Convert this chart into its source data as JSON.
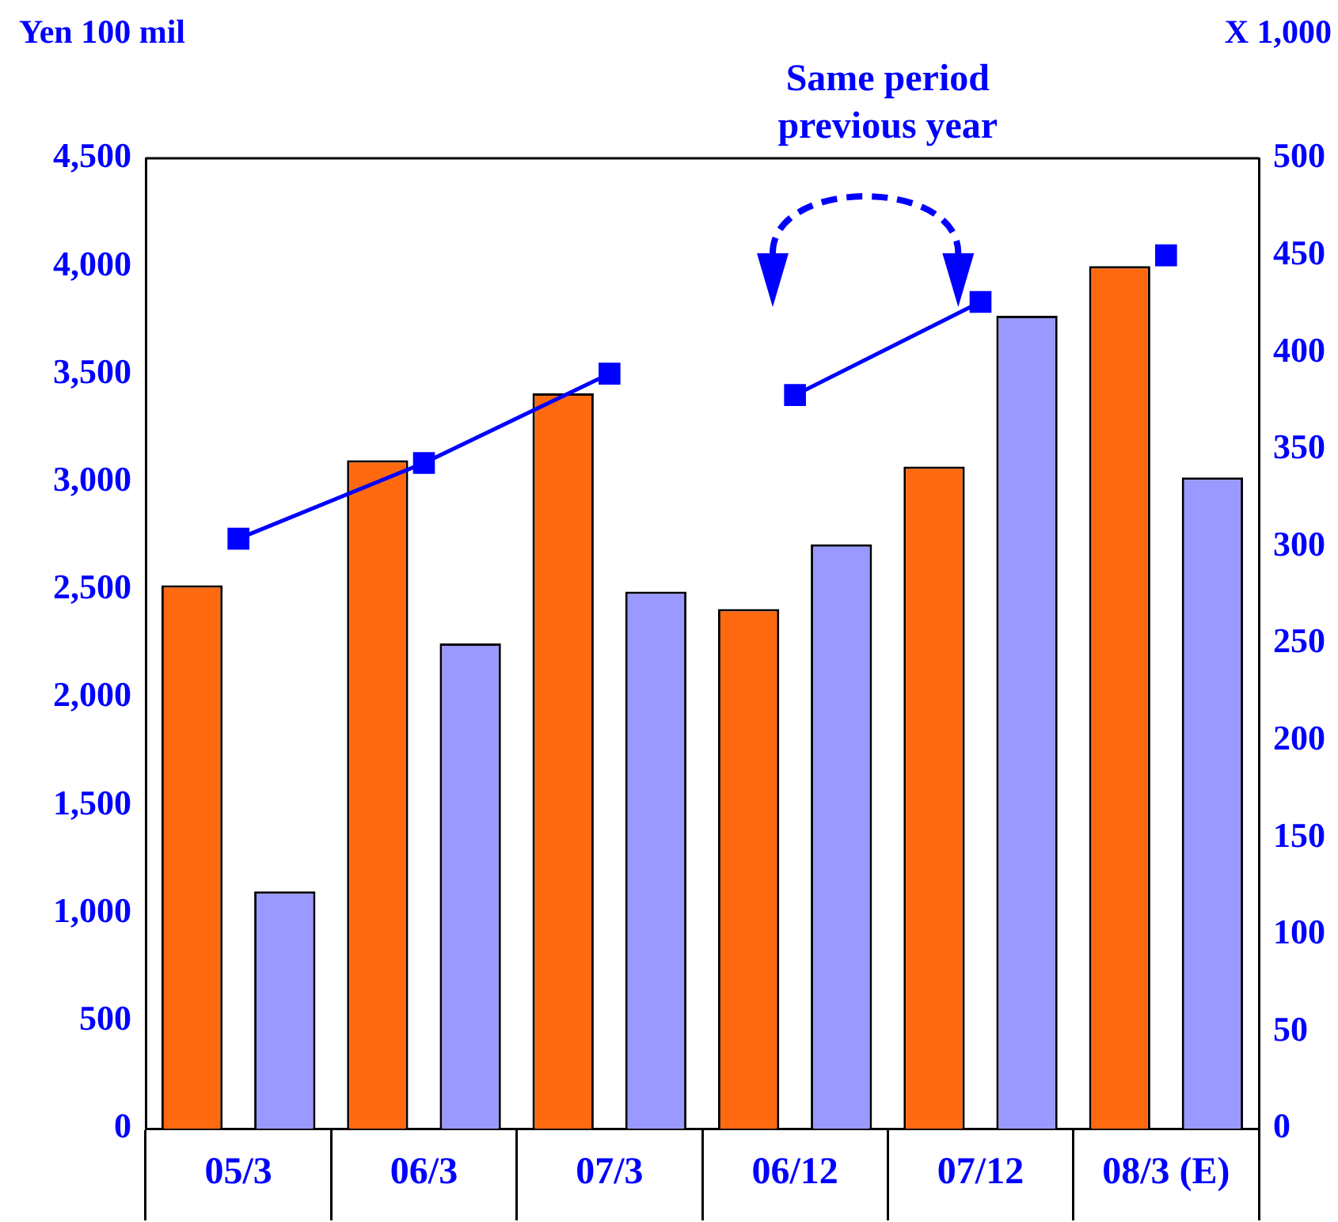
{
  "chart_data": {
    "type": "bar",
    "categories": [
      "05/3",
      "06/3",
      "07/3",
      "06/12",
      "07/12",
      "08/3 (E)"
    ],
    "ylabel": "Yen 100 mil",
    "y2label": "X 1,000",
    "series": [
      {
        "color": "#ff6a10",
        "values": [
          2520,
          3100,
          3410,
          2410,
          3070,
          4000
        ]
      },
      {
        "color": "#9999ff",
        "values": [
          1100,
          2250,
          2490,
          2710,
          3770,
          3020
        ]
      },
      {
        "type": "line",
        "axis": "y2",
        "color": "#0000ff",
        "values": [
          304,
          343,
          389,
          null,
          null,
          null
        ]
      },
      {
        "type": "line",
        "axis": "y2",
        "color": "#0000ff",
        "values": [
          null,
          null,
          null,
          378,
          426,
          null
        ]
      },
      {
        "type": "line",
        "axis": "y2",
        "color": "#0000ff",
        "values": [
          null,
          null,
          null,
          null,
          null,
          450
        ]
      }
    ],
    "ylim": [
      0,
      4500
    ],
    "yticks": [
      0,
      500,
      {
        "value": 1000,
        "label": "1,000"
      },
      {
        "value": 1500,
        "label": "1,500"
      },
      {
        "value": 2000,
        "label": "2,000"
      },
      {
        "value": 2500,
        "label": "2,500"
      },
      {
        "value": 3000,
        "label": "3,000"
      },
      {
        "value": 3500,
        "label": "3,500"
      },
      {
        "value": 4000,
        "label": "4,000"
      },
      {
        "value": 4500,
        "label": "4,500"
      }
    ],
    "y2lim": [
      0,
      500
    ],
    "y2ticks": [
      0,
      50,
      100,
      150,
      200,
      250,
      300,
      350,
      400,
      450,
      500
    ],
    "marker": "square",
    "line_style": "solid",
    "grid": false,
    "legend": false,
    "annotations": [
      "Same period previous year"
    ]
  }
}
